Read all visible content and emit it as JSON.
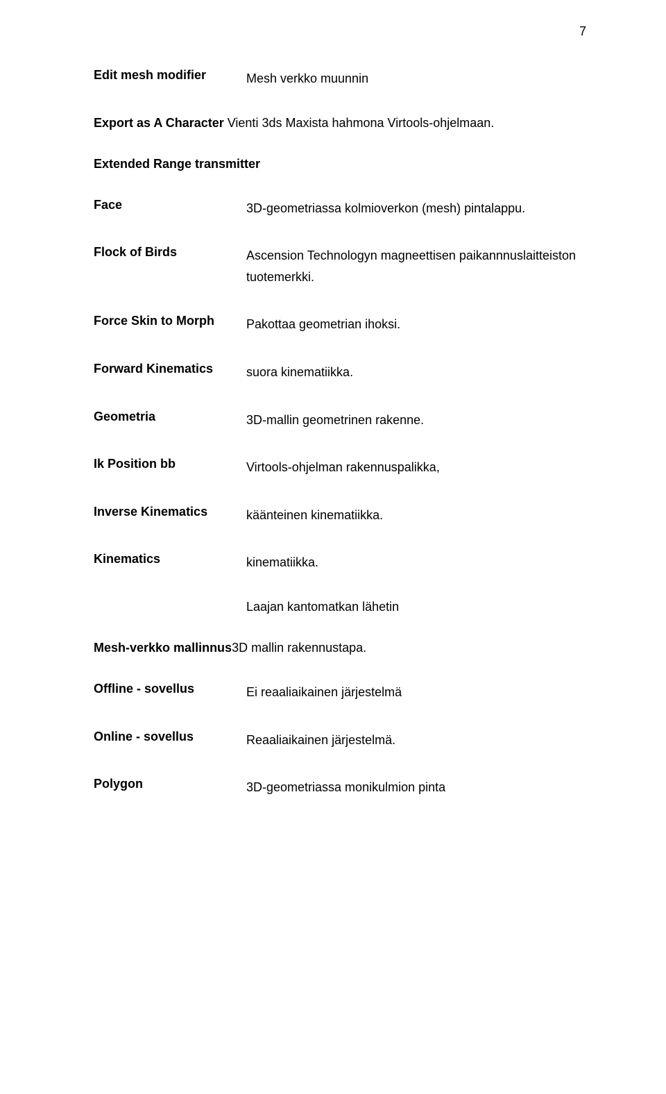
{
  "page_number": "7",
  "term_edit_mesh": "Edit mesh modifier",
  "def_edit_mesh": "Mesh verkko muunnin",
  "term_export": "Export as A Character",
  "def_export": " Vienti 3ds Maxista hahmona Virtools-ohjelmaan.",
  "term_extended": "Extended Range transmitter",
  "term_face": "Face",
  "def_face": "3D-geometriassa kolmioverkon (mesh) pintalappu.",
  "term_flock": "Flock of Birds",
  "def_flock": "Ascension Technologyn magneettisen paikannnuslaitteiston tuotemerkki.",
  "term_force": "Force Skin to Morph",
  "def_force": "Pakottaa geometrian ihoksi.",
  "term_forward": "Forward Kinematics",
  "def_forward": "suora kinematiikka.",
  "term_geometria": "Geometria",
  "def_geometria": "3D-mallin geometrinen rakenne.",
  "term_ik": "Ik Position bb",
  "def_ik": "Virtools-ohjelman rakennuspalikka,",
  "term_inverse": "Inverse Kinematics",
  "def_inverse": "käänteinen kinematiikka.",
  "term_kinematics": "Kinematics",
  "def_kinematics": "kinematiikka.",
  "def_laajan": "Laajan kantomatkan lähetin",
  "term_mesh": "Mesh-verkko mallinnus",
  "def_mesh": "3D mallin rakennustapa.",
  "term_offline": "Offline - sovellus",
  "def_offline": "Ei reaaliaikainen järjestelmä",
  "term_online": "Online - sovellus",
  "def_online": "Reaaliaikainen järjestelmä.",
  "term_polygon": "Polygon",
  "def_polygon": "3D-geometriassa monikulmion pinta"
}
